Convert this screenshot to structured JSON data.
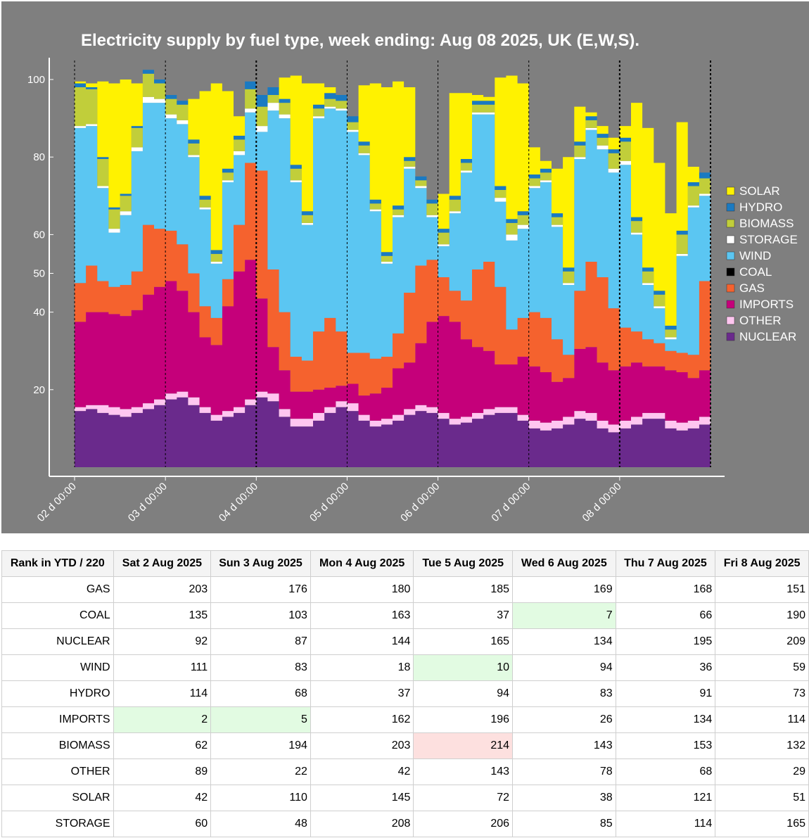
{
  "chart_data": {
    "type": "area",
    "stacked": true,
    "normalized_percent": true,
    "title": "Electricity supply by fuel type, week ending:  Aug 08 2025, UK (E,W,S).",
    "xlabel": "",
    "ylabel": "",
    "ylim": [
      0,
      100
    ],
    "yticks": [
      20,
      40,
      50,
      60,
      80,
      100
    ],
    "ytick_labels": [
      "20",
      "40",
      "50",
      "60",
      "80",
      "100"
    ],
    "xtick_labels": [
      "02 d 00:00",
      "03 d 00:00",
      "04 d 00:00",
      "05 d 00:00",
      "06 d 00:00",
      "07 d 00:00",
      "08 d 00:00"
    ],
    "x_unit": "days since 02 Aug 00:00",
    "xlim": [
      0,
      7
    ],
    "legend_position": "right",
    "x": [
      0,
      0.125,
      0.25,
      0.375,
      0.5,
      0.625,
      0.75,
      0.875,
      1,
      1.125,
      1.25,
      1.375,
      1.5,
      1.625,
      1.75,
      1.875,
      2,
      2.125,
      2.25,
      2.375,
      2.5,
      2.625,
      2.75,
      2.875,
      3,
      3.125,
      3.25,
      3.375,
      3.5,
      3.625,
      3.75,
      3.875,
      4,
      4.125,
      4.25,
      4.375,
      4.5,
      4.625,
      4.75,
      4.875,
      5,
      5.125,
      5.25,
      5.375,
      5.5,
      5.625,
      5.75,
      5.875,
      6,
      6.125,
      6.25,
      6.375,
      6.5,
      6.625,
      6.75,
      6.875,
      7
    ],
    "series": [
      {
        "name": "NUCLEAR",
        "color": "#6a2a8c",
        "values": [
          14.5,
          15,
          14,
          13.5,
          13,
          14,
          15,
          16,
          17.5,
          18,
          16,
          14,
          12,
          13,
          14,
          16,
          18,
          17,
          13,
          10.5,
          10.5,
          12,
          14,
          15.5,
          14.5,
          12,
          10.5,
          11,
          12,
          13.5,
          14.5,
          14,
          12.5,
          11,
          11.5,
          12.5,
          13.5,
          14,
          14,
          12,
          10,
          9.5,
          10,
          11,
          12.5,
          12,
          10,
          9,
          10,
          11,
          12.5,
          12.5,
          10,
          9.5,
          10,
          11,
          11.5
        ]
      },
      {
        "name": "OTHER",
        "color": "#ffc6f0",
        "values": [
          1,
          1,
          2,
          2,
          2,
          1.5,
          1.5,
          1.5,
          1.5,
          1.5,
          2,
          1.5,
          1.5,
          1.5,
          1.5,
          1.5,
          1.5,
          2,
          2,
          2,
          2,
          2,
          1.5,
          1.5,
          2,
          1.5,
          1.5,
          1.5,
          1.5,
          1.5,
          1.5,
          1.5,
          1.5,
          1.5,
          1.5,
          1.5,
          1.5,
          1.5,
          1.5,
          1.5,
          2,
          2,
          2,
          2,
          2,
          2,
          2,
          2,
          2,
          2,
          1.5,
          1.5,
          2,
          2,
          2,
          2,
          2
        ]
      },
      {
        "name": "IMPORTS",
        "color": "#c5007a",
        "values": [
          22,
          24,
          24,
          24,
          24,
          25,
          28,
          29,
          29,
          26,
          22,
          18,
          18,
          27,
          35,
          36,
          24,
          12,
          10,
          7,
          7,
          6,
          5,
          4,
          5,
          5,
          7,
          8,
          12,
          12,
          16,
          22,
          25,
          25,
          20,
          17,
          15,
          11,
          11,
          15,
          14,
          13,
          10,
          10,
          16,
          17,
          15,
          14,
          14,
          14,
          12,
          12,
          13,
          13,
          11,
          12,
          16
        ]
      },
      {
        "name": "GAS",
        "color": "#f5622e",
        "values": [
          10,
          12,
          8,
          7,
          8,
          10,
          18,
          15,
          13,
          12,
          10,
          8,
          7,
          7,
          12,
          25,
          33,
          20,
          15,
          9,
          8,
          15,
          18,
          14,
          8,
          11,
          9,
          8,
          9,
          18,
          20,
          16,
          10,
          8,
          10,
          20,
          23,
          20,
          9,
          10,
          14,
          14,
          11,
          6,
          15,
          22,
          22,
          16,
          10,
          8,
          7,
          6,
          5,
          5,
          6,
          23,
          19
        ]
      },
      {
        "name": "COAL",
        "color": "#000000",
        "values": [
          0,
          0,
          0,
          0,
          0,
          0,
          0,
          0,
          0,
          0,
          0,
          0,
          0,
          0,
          0,
          0,
          0,
          0,
          0,
          0,
          0,
          0,
          0,
          0,
          0,
          0,
          0,
          0,
          0,
          0,
          0,
          0,
          0,
          0,
          0,
          0,
          0,
          0,
          0,
          0,
          0,
          0,
          0,
          0,
          0,
          0,
          0,
          0,
          0,
          0,
          0,
          0,
          0,
          0,
          0,
          0,
          0
        ]
      },
      {
        "name": "WIND",
        "color": "#5bc6f2",
        "values": [
          40,
          36,
          24,
          14,
          18,
          31,
          31.5,
          32.5,
          29,
          31,
          30,
          25,
          14,
          25,
          18,
          13,
          10,
          41,
          50,
          45,
          35,
          55,
          54,
          57,
          57,
          51,
          38,
          24,
          30,
          32,
          20,
          11,
          8,
          20,
          33,
          40,
          38,
          22,
          23,
          23,
          32,
          35,
          29,
          18,
          34,
          34,
          33,
          35,
          42,
          25,
          14,
          9,
          3,
          25,
          38,
          22,
          32
        ]
      },
      {
        "name": "STORAGE",
        "color": "#ffffff",
        "values": [
          0.5,
          0.5,
          0.5,
          1,
          1,
          1,
          1.5,
          1,
          1,
          1,
          0.5,
          0.5,
          0.5,
          0.5,
          1,
          1,
          1.5,
          2,
          1,
          0.5,
          0.5,
          0.5,
          0.5,
          0.5,
          0.5,
          0.5,
          0.5,
          0.5,
          0.5,
          0.5,
          0.5,
          0.5,
          0.5,
          0.5,
          0.5,
          0.5,
          0.5,
          1,
          1.5,
          1,
          0.5,
          0.5,
          0.5,
          0.5,
          0.5,
          0.5,
          1,
          1,
          1,
          0.5,
          0.5,
          0.5,
          0.5,
          0.5,
          0.5,
          0.5,
          0.5
        ]
      },
      {
        "name": "BIOMASS",
        "color": "#c1ce3a",
        "values": [
          10,
          9,
          7,
          5,
          4,
          5,
          6,
          4,
          4,
          4,
          3,
          2,
          2,
          2,
          3,
          5,
          5,
          2,
          3,
          3,
          2,
          2,
          2,
          2,
          2,
          2,
          1.5,
          1.5,
          1.5,
          1.5,
          1.5,
          3,
          3,
          3,
          2,
          2,
          2,
          2,
          3,
          2.5,
          2,
          2,
          2,
          3,
          3,
          2,
          2,
          4,
          5,
          3,
          3,
          3,
          2,
          5,
          5,
          4,
          6
        ]
      },
      {
        "name": "HYDRO",
        "color": "#1a7ac2",
        "values": [
          1,
          0.5,
          0.5,
          0.5,
          0.5,
          0.5,
          1,
          1,
          1,
          1,
          1,
          1,
          1,
          1,
          1,
          2,
          3,
          2,
          1,
          1,
          1,
          1,
          1.5,
          1.5,
          1.5,
          1,
          1,
          1,
          1,
          1,
          1,
          1,
          1,
          1,
          1,
          1,
          1,
          1,
          1,
          1,
          1,
          1,
          1,
          1,
          1,
          1,
          1,
          1,
          1,
          1,
          1,
          1,
          1,
          1,
          1,
          1.5,
          2
        ]
      },
      {
        "name": "SOLAR",
        "color": "#fff200",
        "values": [
          0.5,
          1,
          19.5,
          32,
          29.5,
          11,
          0,
          0,
          0,
          0,
          10.5,
          27,
          43,
          20,
          5,
          0,
          0,
          0,
          5.5,
          23,
          33,
          5.5,
          1.5,
          0,
          0,
          14.5,
          30,
          42.5,
          32,
          18,
          0,
          0,
          9,
          26.5,
          17,
          1.5,
          1,
          28,
          37,
          33,
          7,
          2,
          11.5,
          28.5,
          9,
          1,
          2,
          3,
          3,
          29.5,
          36,
          33,
          29,
          28,
          4,
          0,
          0
        ]
      }
    ],
    "legend_order": [
      "SOLAR",
      "HYDRO",
      "BIOMASS",
      "STORAGE",
      "WIND",
      "COAL",
      "GAS",
      "IMPORTS",
      "OTHER",
      "NUCLEAR"
    ]
  },
  "rank_table": {
    "headers": [
      "Rank in YTD / 220",
      "Sat 2 Aug 2025",
      "Sun 3 Aug 2025",
      "Mon 4 Aug 2025",
      "Tue 5 Aug 2025",
      "Wed 6 Aug 2025",
      "Thu 7 Aug 2025",
      "Fri 8 Aug 2025"
    ],
    "rows": [
      {
        "fuel": "GAS",
        "ranks": [
          203,
          176,
          180,
          185,
          169,
          168,
          151
        ],
        "highlights": [
          "",
          "",
          "",
          "",
          "",
          "",
          ""
        ]
      },
      {
        "fuel": "COAL",
        "ranks": [
          135,
          103,
          163,
          37,
          7,
          66,
          190
        ],
        "highlights": [
          "",
          "",
          "",
          "",
          "best",
          "",
          ""
        ]
      },
      {
        "fuel": "NUCLEAR",
        "ranks": [
          92,
          87,
          144,
          165,
          134,
          195,
          209
        ],
        "highlights": [
          "",
          "",
          "",
          "",
          "",
          "",
          ""
        ]
      },
      {
        "fuel": "WIND",
        "ranks": [
          111,
          83,
          18,
          10,
          94,
          36,
          59
        ],
        "highlights": [
          "",
          "",
          "",
          "best",
          "",
          "",
          ""
        ]
      },
      {
        "fuel": "HYDRO",
        "ranks": [
          114,
          68,
          37,
          94,
          83,
          91,
          73
        ],
        "highlights": [
          "",
          "",
          "",
          "",
          "",
          "",
          ""
        ]
      },
      {
        "fuel": "IMPORTS",
        "ranks": [
          2,
          5,
          162,
          196,
          26,
          134,
          114
        ],
        "highlights": [
          "best",
          "best",
          "",
          "",
          "",
          "",
          ""
        ]
      },
      {
        "fuel": "BIOMASS",
        "ranks": [
          62,
          194,
          203,
          214,
          143,
          153,
          132
        ],
        "highlights": [
          "",
          "",
          "",
          "worst",
          "",
          "",
          ""
        ]
      },
      {
        "fuel": "OTHER",
        "ranks": [
          89,
          22,
          42,
          143,
          78,
          68,
          29
        ],
        "highlights": [
          "",
          "",
          "",
          "",
          "",
          "",
          ""
        ]
      },
      {
        "fuel": "SOLAR",
        "ranks": [
          42,
          110,
          145,
          72,
          38,
          121,
          51
        ],
        "highlights": [
          "",
          "",
          "",
          "",
          "",
          "",
          ""
        ]
      },
      {
        "fuel": "STORAGE",
        "ranks": [
          60,
          48,
          208,
          206,
          85,
          114,
          165
        ],
        "highlights": [
          "",
          "",
          "",
          "",
          "",
          "",
          ""
        ]
      }
    ]
  },
  "colors": {
    "panel_bg": "#7f7f7f",
    "best": "#e2fbe2",
    "worst": "#fde0df"
  }
}
